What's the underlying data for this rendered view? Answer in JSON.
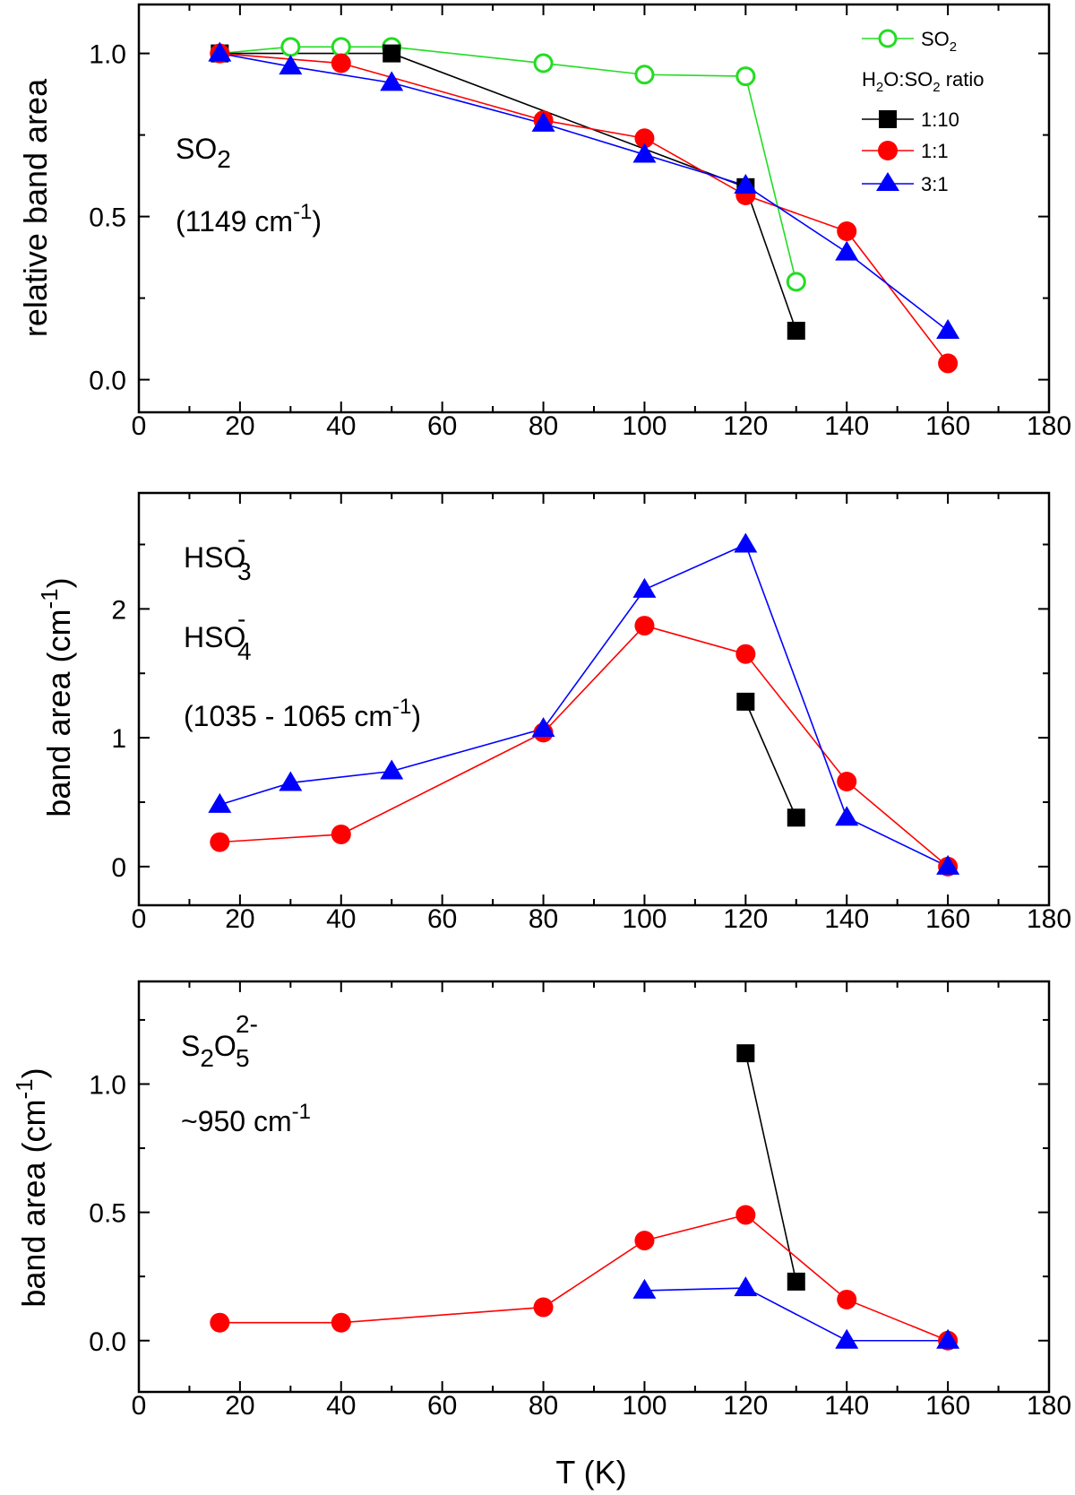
{
  "chart_data": [
    {
      "type": "line",
      "ylabel": "relative band area",
      "xlabel": "",
      "xlim": [
        0,
        180
      ],
      "ylim": [
        -0.1,
        1.15
      ],
      "xticks": [
        0,
        20,
        40,
        60,
        80,
        100,
        120,
        140,
        160,
        180
      ],
      "yticks": [
        0.0,
        0.5,
        1.0
      ],
      "ytick_labels": [
        "0.0",
        "0.5",
        "1.0"
      ],
      "annotation": {
        "species": "SO",
        "species_sub": "2",
        "band_prefix": "(1149 cm",
        "band_sup": "-1",
        "band_suffix": ")"
      },
      "legend": {
        "placement": "top-right",
        "title_parts": [
          "H",
          "2",
          "O:SO",
          "2",
          " ratio"
        ]
      },
      "series": [
        {
          "key": "so2",
          "name": "SO",
          "name_sub": "2",
          "color": "#22dd22",
          "marker": "open-circle",
          "x": [
            16,
            30,
            40,
            50,
            80,
            100,
            120,
            130
          ],
          "y": [
            1.0,
            1.02,
            1.02,
            1.02,
            0.97,
            0.935,
            0.93,
            0.3
          ]
        },
        {
          "key": "r1_10",
          "name": "1:10",
          "color": "#000000",
          "marker": "square",
          "x": [
            16,
            50,
            120,
            130
          ],
          "y": [
            1.0,
            1.0,
            0.59,
            0.15
          ]
        },
        {
          "key": "r1_1",
          "name": "1:1",
          "color": "#ff0000",
          "marker": "circle",
          "x": [
            16,
            40,
            80,
            100,
            120,
            140,
            160
          ],
          "y": [
            1.0,
            0.97,
            0.795,
            0.74,
            0.565,
            0.455,
            0.05
          ]
        },
        {
          "key": "r3_1",
          "name": "3:1",
          "color": "#0000ff",
          "marker": "triangle",
          "x": [
            16,
            30,
            50,
            80,
            100,
            120,
            140,
            160
          ],
          "y": [
            1.0,
            0.96,
            0.91,
            0.785,
            0.69,
            0.595,
            0.39,
            0.15
          ]
        }
      ]
    },
    {
      "type": "line",
      "ylabel": "band area (cm",
      "ylabel_sup": "-1",
      "ylabel_suffix": ")",
      "xlabel": "",
      "xlim": [
        0,
        180
      ],
      "ylim": [
        -0.3,
        2.9
      ],
      "xticks": [
        0,
        20,
        40,
        60,
        80,
        100,
        120,
        140,
        160,
        180
      ],
      "yticks": [
        0,
        1,
        2
      ],
      "ytick_labels": [
        "0",
        "1",
        "2"
      ],
      "annotation": {
        "line1": "HSO",
        "line1_sub": "3",
        "line1_sup": "-",
        "line2": "HSO",
        "line2_sub": "4",
        "line2_sup": "-",
        "band_prefix": "(1035 - 1065 cm",
        "band_sup": "-1",
        "band_suffix": ")"
      },
      "series": [
        {
          "key": "r1_10",
          "name": "1:10",
          "color": "#000000",
          "marker": "square",
          "x": [
            120,
            130
          ],
          "y": [
            1.28,
            0.38
          ]
        },
        {
          "key": "r1_1",
          "name": "1:1",
          "color": "#ff0000",
          "marker": "circle",
          "x": [
            16,
            40,
            80,
            100,
            120,
            140,
            160
          ],
          "y": [
            0.19,
            0.25,
            1.04,
            1.87,
            1.65,
            0.66,
            0.0
          ]
        },
        {
          "key": "r3_1",
          "name": "3:1",
          "color": "#0000ff",
          "marker": "triangle",
          "x": [
            16,
            30,
            50,
            80,
            100,
            120,
            140,
            160
          ],
          "y": [
            0.48,
            0.65,
            0.74,
            1.07,
            2.15,
            2.5,
            0.38,
            0.0
          ]
        }
      ]
    },
    {
      "type": "line",
      "ylabel": "band area (cm",
      "ylabel_sup": "-1",
      "ylabel_suffix": ")",
      "xlabel": "T (K)",
      "xlim": [
        0,
        180
      ],
      "ylim": [
        -0.2,
        1.4
      ],
      "xticks": [
        0,
        20,
        40,
        60,
        80,
        100,
        120,
        140,
        160,
        180
      ],
      "yticks": [
        0.0,
        0.5,
        1.0
      ],
      "ytick_labels": [
        "0.0",
        "0.5",
        "1.0"
      ],
      "annotation": {
        "species_a": "S",
        "species_a_sub": "2",
        "species_b": "O",
        "species_b_sub": "5",
        "species_sup": "2-",
        "band_prefix": "~950 cm",
        "band_sup": "-1"
      },
      "series": [
        {
          "key": "r1_10",
          "name": "1:10",
          "color": "#000000",
          "marker": "square",
          "x": [
            120,
            130
          ],
          "y": [
            1.12,
            0.23
          ]
        },
        {
          "key": "r1_1",
          "name": "1:1",
          "color": "#ff0000",
          "marker": "circle",
          "x": [
            16,
            40,
            80,
            100,
            120,
            140,
            160
          ],
          "y": [
            0.07,
            0.07,
            0.13,
            0.39,
            0.49,
            0.16,
            0.0
          ]
        },
        {
          "key": "r3_1",
          "name": "3:1",
          "color": "#0000ff",
          "marker": "triangle",
          "x": [
            100,
            120,
            140,
            160
          ],
          "y": [
            0.195,
            0.205,
            0.0,
            0.0
          ]
        }
      ]
    }
  ]
}
